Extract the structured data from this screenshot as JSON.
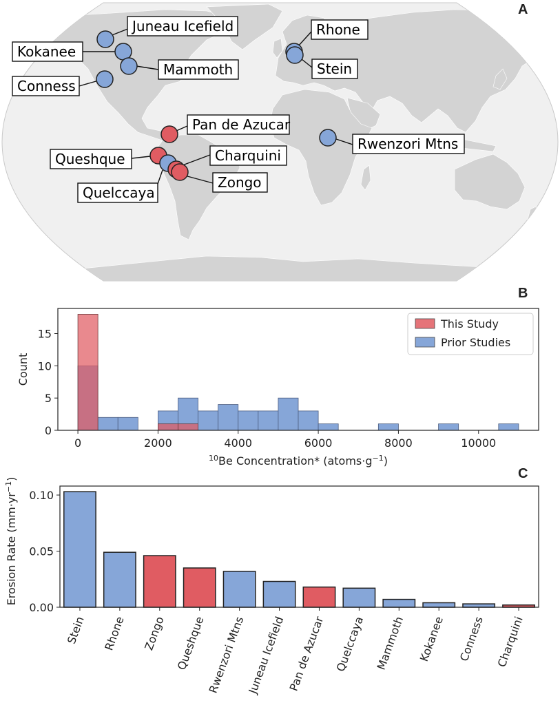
{
  "colors": {
    "this_study": "#e05c62",
    "prior": "#86a6d8",
    "land": "#d3d3d3",
    "ocean": "#f0f0f0"
  },
  "panel_a": {
    "letter": "A",
    "map_icon": "world-map-robinson",
    "sites": [
      {
        "name": "Juneau Icefield",
        "group": "prior"
      },
      {
        "name": "Kokanee",
        "group": "prior"
      },
      {
        "name": "Mammoth",
        "group": "prior"
      },
      {
        "name": "Conness",
        "group": "prior"
      },
      {
        "name": "Rhone",
        "group": "prior"
      },
      {
        "name": "Stein",
        "group": "prior"
      },
      {
        "name": "Pan de Azucar",
        "group": "this"
      },
      {
        "name": "Rwenzori Mtns",
        "group": "prior"
      },
      {
        "name": "Queshque",
        "group": "this"
      },
      {
        "name": "Charquini",
        "group": "this"
      },
      {
        "name": "Quelccaya",
        "group": "prior"
      },
      {
        "name": "Zongo",
        "group": "this"
      }
    ]
  },
  "panel_b": {
    "letter": "B"
  },
  "panel_c": {
    "letter": "C"
  },
  "chart_data": [
    {
      "type": "bar",
      "subtype": "histogram",
      "bin_width": 500,
      "bin_starts": [
        0,
        500,
        1000,
        1500,
        2000,
        2500,
        3000,
        3500,
        4000,
        4500,
        5000,
        5500,
        6000,
        6500,
        7000,
        7500,
        8000,
        8500,
        9000,
        9500,
        10000,
        10500
      ],
      "series": [
        {
          "name": "Prior Studies",
          "color": "#86a6d8",
          "values": [
            10,
            2,
            2,
            0,
            3,
            5,
            3,
            4,
            3,
            3,
            5,
            3,
            1,
            0,
            0,
            1,
            0,
            0,
            1,
            0,
            0,
            1
          ]
        },
        {
          "name": "This Study",
          "color": "#e05c62",
          "values": [
            18,
            0,
            0,
            0,
            1,
            1,
            0,
            0,
            0,
            0,
            0,
            0,
            0,
            0,
            0,
            0,
            0,
            0,
            0,
            0,
            0,
            0
          ]
        }
      ],
      "xlabel_sup": "10",
      "xlabel": "Be Concentration* (atoms·g",
      "xlabel_sup2": "−1",
      "xlabel_end": ")",
      "ylabel": "Count",
      "xlim": [
        -500,
        11500
      ],
      "ylim": [
        0,
        18.9
      ],
      "xticks": [
        0,
        2000,
        4000,
        6000,
        8000,
        10000
      ],
      "yticks": [
        0,
        5,
        10,
        15
      ],
      "legend": {
        "placement": "top-right"
      }
    },
    {
      "type": "bar",
      "categories": [
        "Stein",
        "Rhone",
        "Zongo",
        "Queshque",
        "Rwenzori Mtns",
        "Juneau Icefield",
        "Pan de Azucar",
        "Quelccaya",
        "Mammoth",
        "Kokanee",
        "Conness",
        "Charquini"
      ],
      "values": [
        0.103,
        0.049,
        0.046,
        0.035,
        0.032,
        0.023,
        0.018,
        0.017,
        0.007,
        0.004,
        0.003,
        0.002
      ],
      "groups": [
        "prior",
        "prior",
        "this",
        "this",
        "prior",
        "prior",
        "this",
        "prior",
        "prior",
        "prior",
        "prior",
        "this"
      ],
      "ylabel": "Erosion Rate (mm·yr",
      "ylabel_sup": "−1",
      "ylabel_end": ")",
      "ylim": [
        0,
        0.108
      ],
      "yticks": [
        "0.00",
        "0.05",
        "0.10"
      ]
    }
  ]
}
